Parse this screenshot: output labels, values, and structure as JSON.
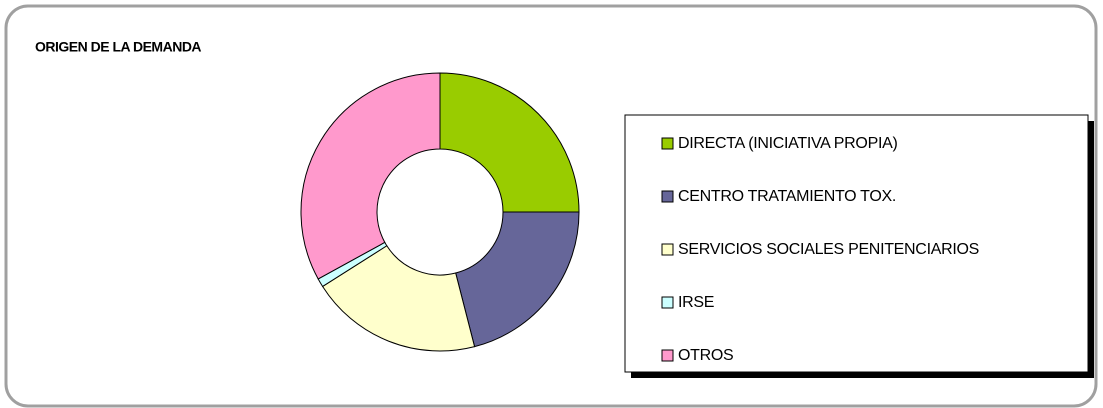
{
  "chart_data": {
    "type": "donut",
    "title": "ORIGEN DE LA DEMANDA",
    "categories": [
      "DIRECTA (INICIATIVA PROPIA)",
      "CENTRO TRATAMIENTO TOX.",
      "SERVICIOS SOCIALES PENITENCIARIOS",
      "IRSE",
      "OTROS"
    ],
    "values": [
      25,
      21,
      20,
      1,
      33
    ],
    "colors": [
      "#99cc00",
      "#666699",
      "#ffffcc",
      "#ccffff",
      "#ff99cc"
    ],
    "legend": "right"
  }
}
